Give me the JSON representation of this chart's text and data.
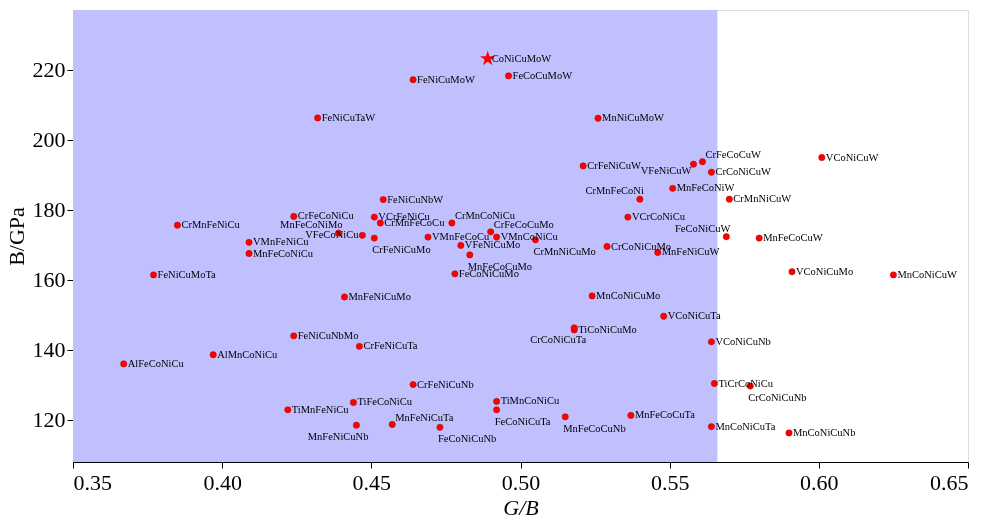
{
  "chart_data": {
    "type": "scatter",
    "xlabel": "G/B",
    "ylabel": "B/GPa",
    "xlim": [
      0.35,
      0.65
    ],
    "ylim": [
      108,
      237
    ],
    "xticks": [
      0.35,
      {
        "value": 0.4,
        "label": "0.40"
      },
      0.45,
      {
        "value": 0.5,
        "label": "0.50"
      },
      0.55,
      {
        "value": 0.6,
        "label": "0.60"
      },
      0.65
    ],
    "yticks": [
      120,
      140,
      160,
      180,
      200,
      220
    ],
    "grid": false,
    "bands": [
      {
        "axis": "x",
        "from": 0.35,
        "to": 0.566,
        "color": "#c0c0ff"
      }
    ],
    "series": [
      {
        "color": "#ff0000",
        "marker": "star",
        "x": [
          0.489
        ],
        "values": [
          223.1
        ]
      },
      {
        "color": "#ff0000",
        "marker": "circle",
        "x": [
          0.464,
          0.496,
          0.432,
          0.526,
          0.521,
          0.561,
          0.558,
          0.564,
          0.601,
          0.54,
          0.551,
          0.454,
          0.57,
          0.451,
          0.424,
          0.385,
          0.439,
          0.453,
          0.477,
          0.536,
          0.49,
          0.569,
          0.58,
          0.409,
          0.447,
          0.469,
          0.492,
          0.451,
          0.48,
          0.505,
          0.529,
          0.409,
          0.483,
          0.546,
          0.377,
          0.478,
          0.591,
          0.625,
          0.441,
          0.524,
          0.548,
          0.424,
          0.518,
          0.518,
          0.446,
          0.564,
          0.397,
          0.367,
          0.464,
          0.565,
          0.492,
          0.444,
          0.577,
          0.422,
          0.492,
          0.515,
          0.537,
          0.457,
          0.445,
          0.473,
          0.564,
          0.59
        ],
        "values": [
          217.1,
          218.2,
          206.2,
          206.1,
          192.5,
          193.7,
          193.0,
          190.7,
          194.9,
          183.0,
          186.1,
          182.9,
          183.0,
          177.9,
          178.1,
          175.6,
          173.3,
          176.2,
          176.2,
          177.9,
          173.7,
          172.3,
          171.9,
          170.7,
          172.7,
          172.2,
          172.2,
          171.9,
          169.8,
          171.4,
          169.5,
          167.5,
          167.1,
          167.8,
          161.4,
          161.7,
          162.3,
          161.4,
          155.1,
          155.4,
          149.6,
          144.0,
          145.7,
          146.3,
          141.0,
          142.3,
          138.6,
          136.0,
          130.1,
          130.4,
          125.3,
          125.0,
          129.7,
          122.9,
          122.9,
          120.9,
          121.3,
          118.7,
          118.5,
          117.9,
          118.1,
          116.3
        ]
      }
    ],
    "annotations": [
      {
        "text": "CoNiCuMoW",
        "x": 0.489,
        "y": 223.1
      },
      {
        "text": "FeNiCuMoW",
        "x": 0.464,
        "y": 217.1
      },
      {
        "text": "FeCoCuMoW",
        "x": 0.496,
        "y": 218.2
      },
      {
        "text": "FeNiCuTaW",
        "x": 0.432,
        "y": 206.2
      },
      {
        "text": "MnNiCuMoW",
        "x": 0.526,
        "y": 206.1
      },
      {
        "text": "CrFeNiCuW",
        "x": 0.521,
        "y": 192.5
      },
      {
        "text": "CrFeCoCuW",
        "x": 0.561,
        "y": 193.7
      },
      {
        "text": "VFeNiCuW",
        "x": 0.558,
        "y": 193.0
      },
      {
        "text": "CrCoNiCuW",
        "x": 0.564,
        "y": 190.7
      },
      {
        "text": "VCoNiCuW",
        "x": 0.601,
        "y": 194.9
      },
      {
        "text": "CrMnFeCoNi",
        "x": 0.54,
        "y": 183.0
      },
      {
        "text": "MnFeCoNiW",
        "x": 0.551,
        "y": 186.1
      },
      {
        "text": "FeNiCuNbW",
        "x": 0.454,
        "y": 182.9
      },
      {
        "text": "CrMnNiCuW",
        "x": 0.57,
        "y": 183.0
      },
      {
        "text": "VCrFeNiCu",
        "x": 0.451,
        "y": 177.9
      },
      {
        "text": "CrFeCoNiCu",
        "x": 0.424,
        "y": 178.1
      },
      {
        "text": "CrMnFeNiCu",
        "x": 0.385,
        "y": 175.6
      },
      {
        "text": "MnFeCoNiMo",
        "x": 0.439,
        "y": 173.3
      },
      {
        "text": "CrMnFeCoCu",
        "x": 0.453,
        "y": 176.2
      },
      {
        "text": "CrMnCoNiCu",
        "x": 0.477,
        "y": 176.2
      },
      {
        "text": "VCrCoNiCu",
        "x": 0.536,
        "y": 177.9
      },
      {
        "text": "CrFeCoCuMo",
        "x": 0.49,
        "y": 173.7
      },
      {
        "text": "FeCoNiCuW",
        "x": 0.569,
        "y": 172.3
      },
      {
        "text": "MnFeCoCuW",
        "x": 0.58,
        "y": 171.9
      },
      {
        "text": "VMnFeNiCu",
        "x": 0.409,
        "y": 170.7
      },
      {
        "text": "VFeCoNiCu",
        "x": 0.447,
        "y": 172.7
      },
      {
        "text": "VMnFeCoCu",
        "x": 0.469,
        "y": 172.2
      },
      {
        "text": "VMnCoNiCu",
        "x": 0.492,
        "y": 172.2
      },
      {
        "text": "CrFeNiCuMo",
        "x": 0.451,
        "y": 171.9
      },
      {
        "text": "VFeNiCuMo",
        "x": 0.48,
        "y": 169.8
      },
      {
        "text": "CrMnNiCuMo",
        "x": 0.505,
        "y": 171.4
      },
      {
        "text": "CrCoNiCuMo",
        "x": 0.529,
        "y": 169.5
      },
      {
        "text": "MnFeCoNiCu",
        "x": 0.409,
        "y": 167.5
      },
      {
        "text": "MnFeCoCuMo",
        "x": 0.483,
        "y": 167.1
      },
      {
        "text": "MnFeNiCuW",
        "x": 0.546,
        "y": 167.8
      },
      {
        "text": "FeNiCuMoTa",
        "x": 0.377,
        "y": 161.4
      },
      {
        "text": "FeCoNiCuMo",
        "x": 0.478,
        "y": 161.7
      },
      {
        "text": "VCoNiCuMo",
        "x": 0.591,
        "y": 162.3
      },
      {
        "text": "MnCoNiCuW",
        "x": 0.625,
        "y": 161.4
      },
      {
        "text": "MnFeNiCuMo",
        "x": 0.441,
        "y": 155.1
      },
      {
        "text": "MnCoNiCuMo",
        "x": 0.524,
        "y": 155.4
      },
      {
        "text": "VCoNiCuTa",
        "x": 0.548,
        "y": 149.6
      },
      {
        "text": "FeNiCuNbMo",
        "x": 0.424,
        "y": 144.0
      },
      {
        "text": "TiCoNiCuMo",
        "x": 0.518,
        "y": 145.7
      },
      {
        "text": "CrCoNiCuTa",
        "x": 0.518,
        "y": 146.3
      },
      {
        "text": "CrFeNiCuTa",
        "x": 0.446,
        "y": 141.0
      },
      {
        "text": "VCoNiCuNb",
        "x": 0.564,
        "y": 142.3
      },
      {
        "text": "AlMnCoNiCu",
        "x": 0.397,
        "y": 138.6
      },
      {
        "text": "AlFeCoNiCu",
        "x": 0.367,
        "y": 136.0
      },
      {
        "text": "CrFeNiCuNb",
        "x": 0.464,
        "y": 130.1
      },
      {
        "text": "TiCrCoNiCu",
        "x": 0.565,
        "y": 130.4
      },
      {
        "text": "TiMnCoNiCu",
        "x": 0.492,
        "y": 125.3
      },
      {
        "text": "TiFeCoNiCu",
        "x": 0.444,
        "y": 125.0
      },
      {
        "text": "CrCoNiCuNb",
        "x": 0.577,
        "y": 129.7
      },
      {
        "text": "TiMnFeNiCu",
        "x": 0.422,
        "y": 122.9
      },
      {
        "text": "FeCoNiCuTa",
        "x": 0.492,
        "y": 122.9
      },
      {
        "text": "MnFeCoCuNb",
        "x": 0.515,
        "y": 120.9
      },
      {
        "text": "MnFeCoCuTa",
        "x": 0.537,
        "y": 121.3
      },
      {
        "text": "MnFeNiCuTa",
        "x": 0.457,
        "y": 118.7
      },
      {
        "text": "MnFeNiCuNb",
        "x": 0.445,
        "y": 118.5
      },
      {
        "text": "FeCoNiCuNb",
        "x": 0.473,
        "y": 117.9
      },
      {
        "text": "MnCoNiCuTa",
        "x": 0.564,
        "y": 118.1
      },
      {
        "text": "MnCoNiCuNb",
        "x": 0.59,
        "y": 116.3
      }
    ]
  }
}
